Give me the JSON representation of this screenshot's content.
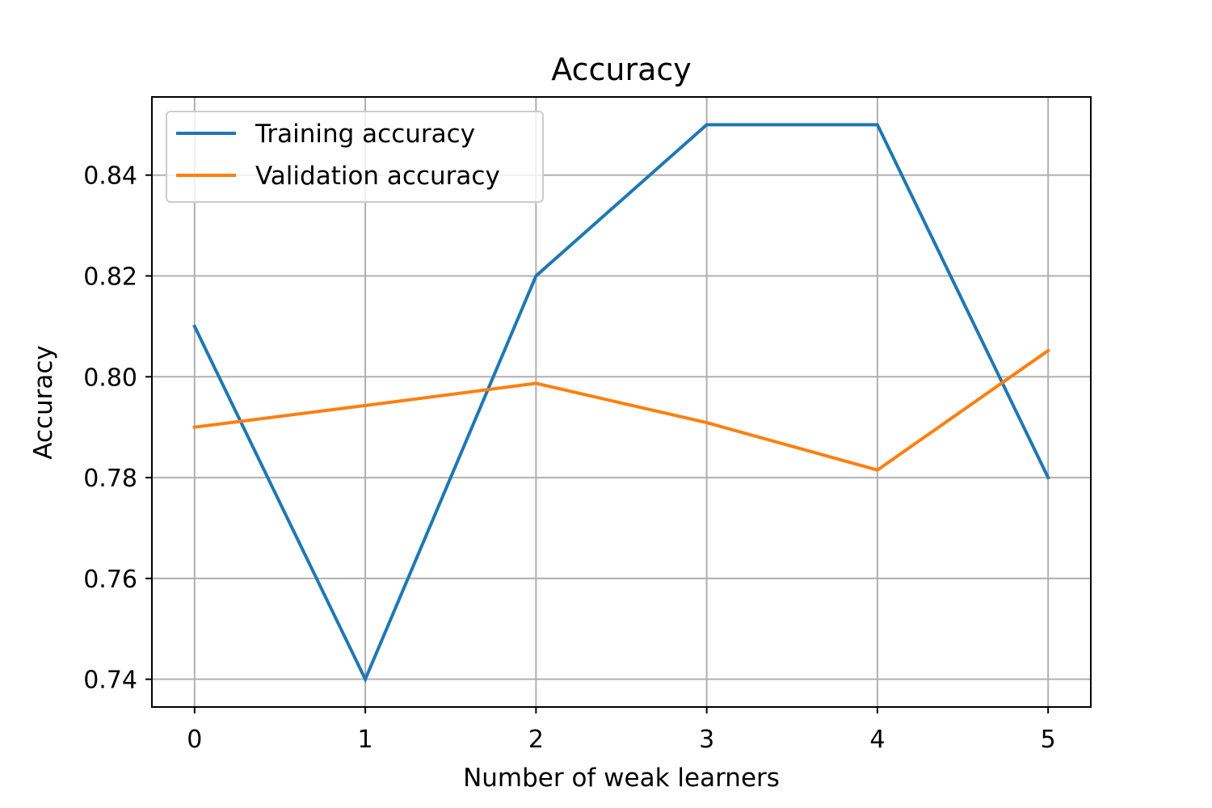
{
  "chart_data": {
    "type": "line",
    "title": "Accuracy",
    "xlabel": "Number of weak learners",
    "ylabel": "Accuracy",
    "x": [
      0,
      1,
      2,
      3,
      4,
      5
    ],
    "xticks": [
      "0",
      "1",
      "2",
      "3",
      "4",
      "5"
    ],
    "yticks": [
      "0.74",
      "0.76",
      "0.78",
      "0.80",
      "0.82",
      "0.84"
    ],
    "ytick_values": [
      0.74,
      0.76,
      0.78,
      0.8,
      0.82,
      0.84
    ],
    "xlim": [
      -0.25,
      5.25
    ],
    "ylim": [
      0.7345,
      0.8555
    ],
    "grid": true,
    "legend_position": "top-left",
    "series": [
      {
        "name": "Training accuracy",
        "color": "#1f77b4",
        "values": [
          0.81,
          0.74,
          0.82,
          0.85,
          0.85,
          0.78
        ]
      },
      {
        "name": "Validation accuracy",
        "color": "#ff7f0e",
        "values": [
          0.79,
          0.7943,
          0.7987,
          0.7909,
          0.7815,
          0.8052
        ]
      }
    ]
  }
}
